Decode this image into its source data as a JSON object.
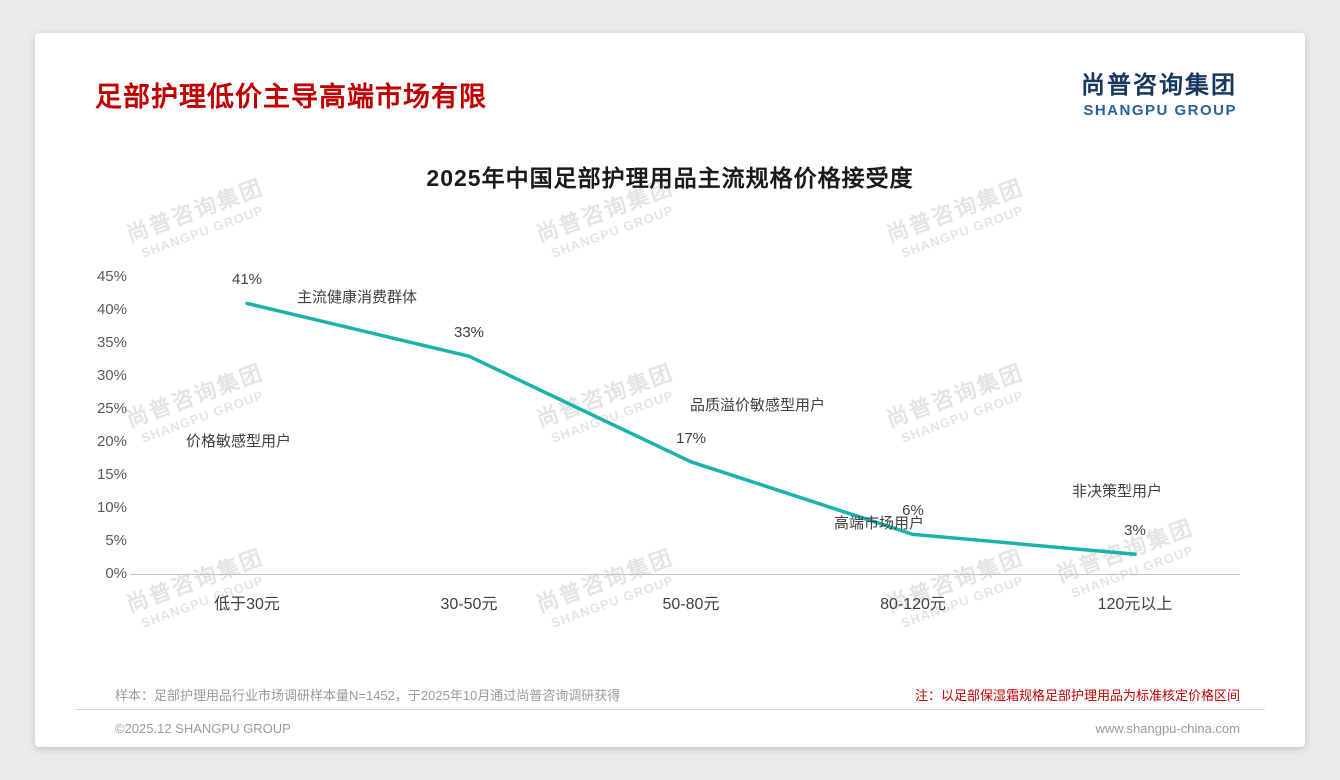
{
  "page": {
    "title": "足部护理低价主导高端市场有限",
    "logo": {
      "cn": "尚普咨询集团",
      "en": "SHANGPU GROUP"
    },
    "watermark": {
      "cn": "尚普咨询集团",
      "en": "SHANGPU GROUP"
    },
    "footer": {
      "sample_note": "样本：足部护理用品行业市场调研样本量N=1452，于2025年10月通过尚普咨询调研获得",
      "price_note": "注：以足部保湿霜规格足部护理用品为标准核定价格区间",
      "copyright": "©2025.12 SHANGPU GROUP",
      "website": "www.shangpu-china.com"
    }
  },
  "chart_data": {
    "type": "line",
    "title": "2025年中国足部护理用品主流规格价格接受度",
    "categories": [
      "低于30元",
      "30-50元",
      "50-80元",
      "80-120元",
      "120元以上"
    ],
    "values": [
      41,
      33,
      17,
      6,
      3
    ],
    "unit": "%",
    "xlabel": "",
    "ylabel": "",
    "ylim": [
      0,
      45
    ],
    "ytick_step": 5,
    "grid": false,
    "legend": "none",
    "line_color": "#1ab3ac",
    "annotations": [
      "主流健康消费群体",
      "价格敏感型用户",
      "品质溢价敏感型用户",
      "高端市场用户",
      "非决策型用户"
    ]
  }
}
